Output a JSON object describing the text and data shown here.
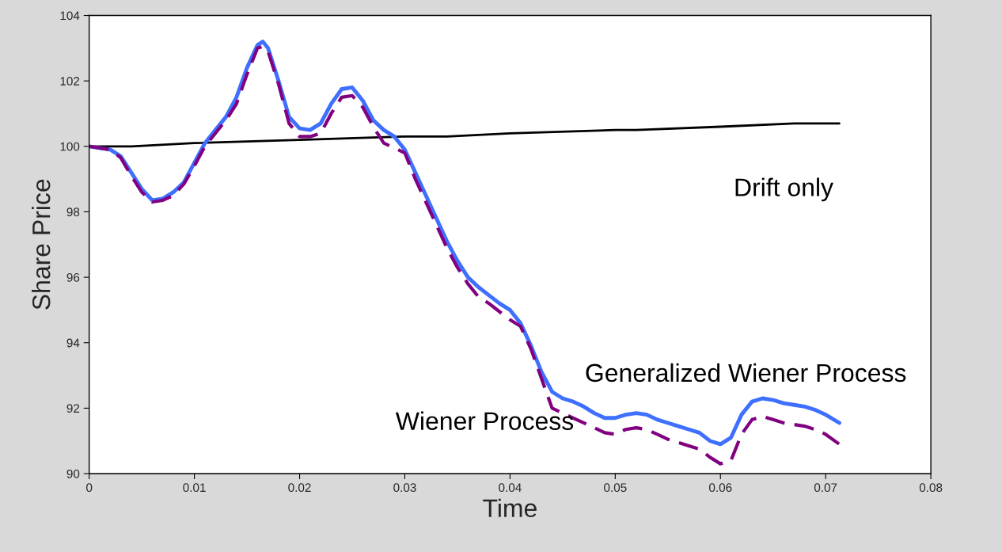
{
  "chart_data": {
    "type": "line",
    "xlabel": "Time",
    "ylabel": "Share Price",
    "xlim": [
      0,
      0.08
    ],
    "xticks": [
      0,
      0.01,
      0.02,
      0.03,
      0.04,
      0.05,
      0.06,
      0.07,
      0.08
    ],
    "ylim": [
      90,
      104
    ],
    "yticks": [
      90,
      92,
      94,
      96,
      98,
      100,
      102,
      104
    ],
    "grid": false,
    "legend": false,
    "marker": "none",
    "series": [
      {
        "name": "Drift only",
        "color": "#000000",
        "line_style": "solid",
        "x": [
          0,
          0.004,
          0.01,
          0.02,
          0.03,
          0.034,
          0.04,
          0.05,
          0.052,
          0.06,
          0.067,
          0.0713
        ],
        "values": [
          100,
          100,
          100.1,
          100.2,
          100.3,
          100.3,
          100.4,
          100.5,
          100.5,
          100.6,
          100.7,
          100.7
        ]
      },
      {
        "name": "Generalized Wiener Process",
        "color": "#3f6fff",
        "line_style": "solid",
        "x": [
          0,
          0.002,
          0.003,
          0.004,
          0.005,
          0.006,
          0.007,
          0.008,
          0.009,
          0.01,
          0.011,
          0.012,
          0.013,
          0.014,
          0.015,
          0.016,
          0.0165,
          0.017,
          0.018,
          0.019,
          0.02,
          0.021,
          0.022,
          0.023,
          0.024,
          0.025,
          0.026,
          0.027,
          0.028,
          0.029,
          0.03,
          0.031,
          0.032,
          0.033,
          0.034,
          0.035,
          0.036,
          0.037,
          0.038,
          0.039,
          0.04,
          0.041,
          0.042,
          0.043,
          0.044,
          0.045,
          0.046,
          0.047,
          0.048,
          0.049,
          0.05,
          0.051,
          0.052,
          0.053,
          0.054,
          0.055,
          0.056,
          0.057,
          0.058,
          0.059,
          0.06,
          0.061,
          0.062,
          0.063,
          0.064,
          0.065,
          0.066,
          0.067,
          0.068,
          0.069,
          0.07,
          0.0713
        ],
        "values": [
          100,
          99.9,
          99.7,
          99.2,
          98.7,
          98.35,
          98.4,
          98.6,
          98.9,
          99.5,
          100.1,
          100.5,
          100.9,
          101.5,
          102.4,
          103.1,
          103.2,
          103,
          102,
          100.9,
          100.55,
          100.5,
          100.7,
          101.3,
          101.75,
          101.8,
          101.4,
          100.8,
          100.5,
          100.3,
          99.9,
          99.2,
          98.5,
          97.8,
          97.1,
          96.5,
          96,
          95.7,
          95.45,
          95.2,
          95,
          94.6,
          93.9,
          93.1,
          92.5,
          92.3,
          92.2,
          92.05,
          91.85,
          91.7,
          91.7,
          91.8,
          91.85,
          91.8,
          91.65,
          91.55,
          91.45,
          91.35,
          91.25,
          91,
          90.9,
          91.1,
          91.8,
          92.2,
          92.3,
          92.25,
          92.15,
          92.1,
          92.05,
          91.95,
          91.8,
          91.55
        ]
      },
      {
        "name": "Wiener Process",
        "color": "#800080",
        "line_style": "dashed",
        "x": [
          0,
          0.002,
          0.003,
          0.004,
          0.005,
          0.006,
          0.007,
          0.008,
          0.009,
          0.01,
          0.011,
          0.012,
          0.013,
          0.014,
          0.015,
          0.016,
          0.0165,
          0.017,
          0.018,
          0.019,
          0.02,
          0.021,
          0.022,
          0.023,
          0.024,
          0.025,
          0.026,
          0.027,
          0.028,
          0.029,
          0.03,
          0.031,
          0.032,
          0.033,
          0.034,
          0.035,
          0.036,
          0.037,
          0.038,
          0.039,
          0.04,
          0.041,
          0.042,
          0.043,
          0.044,
          0.045,
          0.046,
          0.047,
          0.048,
          0.049,
          0.05,
          0.051,
          0.052,
          0.053,
          0.054,
          0.055,
          0.056,
          0.057,
          0.058,
          0.059,
          0.06,
          0.061,
          0.062,
          0.063,
          0.064,
          0.065,
          0.066,
          0.067,
          0.068,
          0.069,
          0.07,
          0.0713
        ],
        "values": [
          100,
          99.9,
          99.65,
          99.1,
          98.6,
          98.3,
          98.35,
          98.5,
          98.85,
          99.4,
          100,
          100.4,
          100.8,
          101.3,
          102.2,
          103,
          103.05,
          102.9,
          101.9,
          100.7,
          100.3,
          100.3,
          100.4,
          101,
          101.5,
          101.55,
          101.2,
          100.6,
          100.1,
          99.95,
          99.8,
          99,
          98.3,
          97.6,
          96.9,
          96.3,
          95.8,
          95.4,
          95.2,
          94.95,
          94.7,
          94.5,
          93.8,
          92.9,
          92,
          91.85,
          91.7,
          91.55,
          91.4,
          91.25,
          91.2,
          91.35,
          91.4,
          91.35,
          91.2,
          91.05,
          90.95,
          90.85,
          90.75,
          90.5,
          90.3,
          90.4,
          91.2,
          91.65,
          91.75,
          91.65,
          91.55,
          91.5,
          91.45,
          91.35,
          91.2,
          90.9
        ]
      }
    ]
  }
}
